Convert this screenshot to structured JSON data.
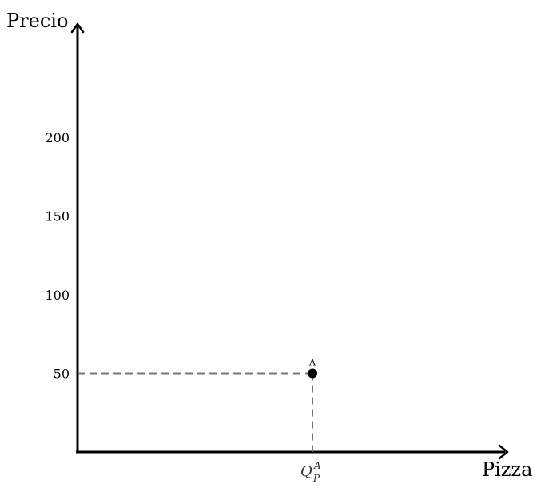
{
  "chart_data": {
    "type": "scatter",
    "title": "",
    "ylabel": "Precio",
    "xlabel": "Pizza",
    "yticks": [
      50,
      100,
      150,
      200
    ],
    "ylim": [
      0,
      275
    ],
    "grid": false,
    "points": [
      {
        "label": "A",
        "price": 50
      }
    ],
    "x_tick_label": {
      "main": "Q",
      "superscript": "A",
      "subscript": "P"
    },
    "point_color": "#000000",
    "guide_color": "#777777"
  }
}
